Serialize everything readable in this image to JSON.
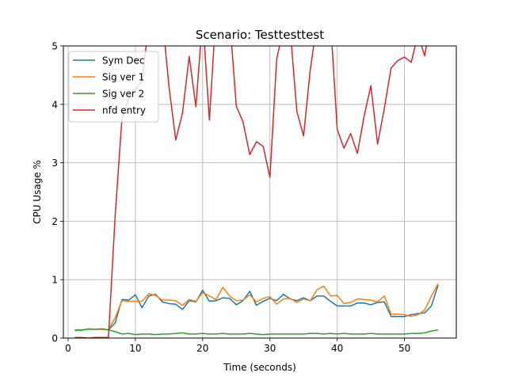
{
  "chart_data": {
    "type": "line",
    "title": "Scenario: Testtesttest",
    "xlabel": "Time (seconds)",
    "ylabel": "CPU Usage %",
    "xlim": [
      -0.7,
      57.7
    ],
    "ylim": [
      0,
      5
    ],
    "xticks": [
      0,
      10,
      20,
      30,
      40,
      50
    ],
    "yticks": [
      0,
      1,
      2,
      3,
      4,
      5
    ],
    "grid": true,
    "legend_position": "top-left",
    "x": [
      1,
      2,
      3,
      4,
      5,
      6,
      7,
      8,
      9,
      10,
      11,
      12,
      13,
      14,
      15,
      16,
      17,
      18,
      19,
      20,
      21,
      22,
      23,
      24,
      25,
      26,
      27,
      28,
      29,
      30,
      31,
      32,
      33,
      34,
      35,
      36,
      37,
      38,
      39,
      40,
      41,
      42,
      43,
      44,
      45,
      46,
      47,
      48,
      49,
      50,
      51,
      52,
      53,
      54,
      55
    ],
    "series": [
      {
        "name": "Sym Dec",
        "color": "#1f77b4",
        "values": [
          0.13,
          0.13,
          0.16,
          0.15,
          0.15,
          0.14,
          0.26,
          0.66,
          0.65,
          0.74,
          0.52,
          0.72,
          0.75,
          0.62,
          0.59,
          0.58,
          0.49,
          0.64,
          0.62,
          0.82,
          0.63,
          0.64,
          0.69,
          0.68,
          0.57,
          0.64,
          0.8,
          0.56,
          0.63,
          0.68,
          0.64,
          0.75,
          0.67,
          0.64,
          0.69,
          0.64,
          0.72,
          0.72,
          0.63,
          0.55,
          0.55,
          0.55,
          0.6,
          0.6,
          0.57,
          0.61,
          0.62,
          0.37,
          0.37,
          0.37,
          0.4,
          0.42,
          0.43,
          0.55,
          0.91
        ]
      },
      {
        "name": "Sig ver 1",
        "color": "#ff7f0e",
        "values": [
          0.13,
          0.13,
          0.16,
          0.15,
          0.15,
          0.14,
          0.35,
          0.64,
          0.63,
          0.63,
          0.63,
          0.76,
          0.73,
          0.65,
          0.65,
          0.64,
          0.56,
          0.66,
          0.63,
          0.78,
          0.72,
          0.66,
          0.87,
          0.72,
          0.64,
          0.65,
          0.74,
          0.62,
          0.68,
          0.71,
          0.58,
          0.67,
          0.68,
          0.61,
          0.67,
          0.64,
          0.83,
          0.89,
          0.72,
          0.73,
          0.59,
          0.61,
          0.67,
          0.66,
          0.65,
          0.62,
          0.72,
          0.41,
          0.41,
          0.4,
          0.37,
          0.4,
          0.48,
          0.72,
          0.93
        ]
      },
      {
        "name": "Sig ver 2",
        "color": "#2ca02c",
        "values": [
          0.14,
          0.14,
          0.15,
          0.15,
          0.16,
          0.14,
          0.11,
          0.07,
          0.08,
          0.06,
          0.07,
          0.07,
          0.06,
          0.07,
          0.07,
          0.08,
          0.09,
          0.07,
          0.07,
          0.08,
          0.07,
          0.07,
          0.08,
          0.07,
          0.07,
          0.07,
          0.08,
          0.07,
          0.06,
          0.07,
          0.07,
          0.07,
          0.07,
          0.07,
          0.07,
          0.08,
          0.08,
          0.07,
          0.08,
          0.07,
          0.08,
          0.07,
          0.07,
          0.07,
          0.08,
          0.07,
          0.07,
          0.07,
          0.07,
          0.07,
          0.08,
          0.08,
          0.09,
          0.12,
          0.14
        ]
      },
      {
        "name": "nfd entry",
        "color": "#d62728",
        "values": [
          0.01,
          0.01,
          0.0,
          0.01,
          0.01,
          0.01,
          2.1,
          3.75,
          4.1,
          4.25,
          4.4,
          5.4,
          5.8,
          5.5,
          4.3,
          3.39,
          3.85,
          4.82,
          3.96,
          5.5,
          3.73,
          5.6,
          5.6,
          5.5,
          3.97,
          3.7,
          3.14,
          3.36,
          3.28,
          2.75,
          4.77,
          5.3,
          5.3,
          3.88,
          3.46,
          4.6,
          5.4,
          5.5,
          5.45,
          3.57,
          3.25,
          3.5,
          3.16,
          3.8,
          4.32,
          3.32,
          3.93,
          4.62,
          4.75,
          4.81,
          4.72,
          5.2,
          4.83,
          5.5,
          5.6
        ]
      }
    ]
  }
}
